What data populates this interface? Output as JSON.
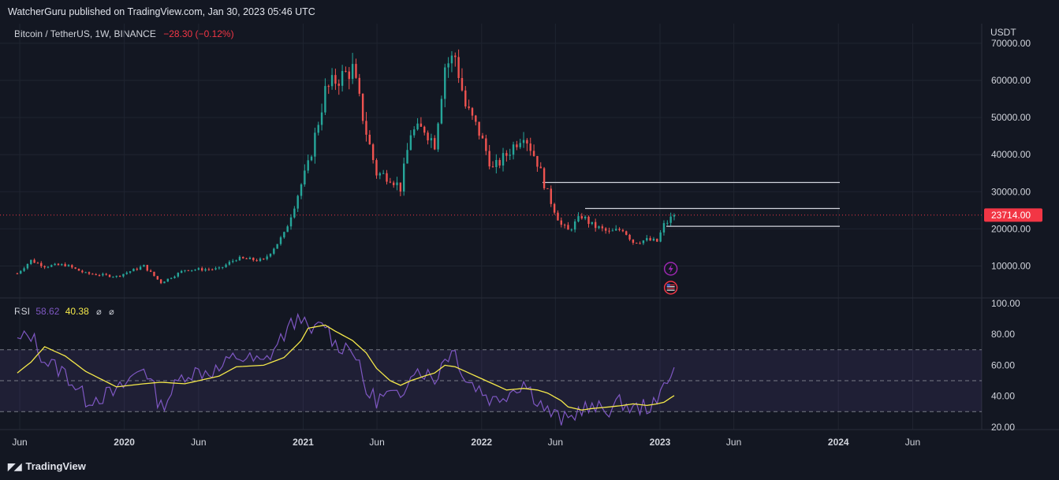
{
  "header": {
    "published": "WatcherGuru published on TradingView.com, Jan 30, 2023 05:46 UTC"
  },
  "legend": {
    "symbol": "Bitcoin / TetherUS, 1W, BINANCE",
    "change": "−28.30 (−0.12%)"
  },
  "rsi_legend": {
    "label": "RSI",
    "value": "58.62",
    "ma_value": "40.38",
    "icon1": "⌀",
    "icon2": "⌀"
  },
  "footer": {
    "brand": "TradingView",
    "logo_icon": "tradingview-logo-icon"
  },
  "colors": {
    "background": "#131722",
    "up": "#26a69a",
    "down": "#ef5350",
    "rsi": "#7e57c2",
    "rsi_ma": "#f5e94a",
    "price_tag": "#f23645"
  },
  "chart_data": [
    {
      "type": "candlestick",
      "title": "Bitcoin / TetherUS, 1W, BINANCE",
      "ylabel": "USDT",
      "yticks": [
        "70000.00",
        "60000.00",
        "50000.00",
        "40000.00",
        "30000.00",
        "20000.00",
        "10000.00"
      ],
      "ytick_values": [
        70000,
        60000,
        50000,
        40000,
        30000,
        20000,
        10000
      ],
      "xticks": [
        "Jun",
        "2020",
        "Jun",
        "2021",
        "Jun",
        "2022",
        "Jun",
        "2023",
        "Jun",
        "2024",
        "Jun"
      ],
      "xtick_dates": [
        "2019-06",
        "2020-01",
        "2020-06",
        "2021-01",
        "2021-06",
        "2022-01",
        "2022-06",
        "2023-01",
        "2023-06",
        "2024-01",
        "2024-06"
      ],
      "last_price": 23714,
      "last_price_label": "23714.00",
      "horizontal_lines": [
        32500,
        25500,
        20700
      ],
      "event_icons": [
        "lightning-icon",
        "us-flag-icon"
      ],
      "close_path": [
        [
          "2019-05-27",
          8000
        ],
        [
          "2019-06-24",
          11500
        ],
        [
          "2019-07-22",
          10000
        ],
        [
          "2019-09-02",
          10300
        ],
        [
          "2019-10-14",
          8000
        ],
        [
          "2019-12-16",
          7200
        ],
        [
          "2020-02-10",
          10000
        ],
        [
          "2020-03-16",
          5500
        ],
        [
          "2020-05-04",
          9000
        ],
        [
          "2020-07-13",
          9200
        ],
        [
          "2020-08-17",
          12000
        ],
        [
          "2020-10-12",
          11500
        ],
        [
          "2020-11-23",
          18500
        ],
        [
          "2020-12-28",
          32000
        ],
        [
          "2021-01-11",
          37000
        ],
        [
          "2021-02-15",
          57000
        ],
        [
          "2021-03-08",
          60000
        ],
        [
          "2021-04-12",
          63000
        ],
        [
          "2021-05-10",
          46000
        ],
        [
          "2021-05-31",
          35000
        ],
        [
          "2021-06-28",
          34000
        ],
        [
          "2021-07-19",
          31000
        ],
        [
          "2021-08-09",
          46000
        ],
        [
          "2021-09-06",
          47000
        ],
        [
          "2021-09-27",
          43000
        ],
        [
          "2021-10-18",
          64000
        ],
        [
          "2021-11-08",
          66500
        ],
        [
          "2021-11-29",
          53000
        ],
        [
          "2021-12-27",
          46000
        ],
        [
          "2022-01-24",
          36000
        ],
        [
          "2022-02-21",
          40000
        ],
        [
          "2022-03-28",
          46000
        ],
        [
          "2022-04-25",
          38000
        ],
        [
          "2022-05-16",
          29500
        ],
        [
          "2022-06-13",
          21000
        ],
        [
          "2022-06-27",
          19500
        ],
        [
          "2022-07-25",
          23500
        ],
        [
          "2022-08-15",
          21000
        ],
        [
          "2022-09-19",
          19000
        ],
        [
          "2022-10-17",
          20000
        ],
        [
          "2022-11-07",
          16500
        ],
        [
          "2022-12-05",
          17000
        ],
        [
          "2022-12-26",
          16600
        ],
        [
          "2023-01-09",
          21000
        ],
        [
          "2023-01-30",
          23714
        ]
      ]
    },
    {
      "type": "line",
      "title": "RSI",
      "yticks": [
        "100.00",
        "80.00",
        "60.00",
        "40.00",
        "20.00"
      ],
      "ytick_values": [
        100,
        80,
        60,
        40,
        20
      ],
      "bands": [
        70,
        50,
        30
      ],
      "series": [
        {
          "name": "RSI",
          "values_by_date": [
            [
              "2019-05-27",
              75
            ],
            [
              "2019-06-24",
              80
            ],
            [
              "2019-07-22",
              63
            ],
            [
              "2019-09-02",
              55
            ],
            [
              "2019-10-14",
              38
            ],
            [
              "2019-12-16",
              42
            ],
            [
              "2020-02-10",
              60
            ],
            [
              "2020-03-16",
              33
            ],
            [
              "2020-05-04",
              55
            ],
            [
              "2020-07-13",
              57
            ],
            [
              "2020-08-17",
              66
            ],
            [
              "2020-10-12",
              61
            ],
            [
              "2020-11-23",
              80
            ],
            [
              "2020-12-28",
              93
            ],
            [
              "2021-01-11",
              80
            ],
            [
              "2021-02-15",
              87
            ],
            [
              "2021-03-08",
              73
            ],
            [
              "2021-04-12",
              72
            ],
            [
              "2021-05-10",
              43
            ],
            [
              "2021-05-31",
              38
            ],
            [
              "2021-06-28",
              41
            ],
            [
              "2021-07-19",
              37
            ],
            [
              "2021-08-09",
              58
            ],
            [
              "2021-09-06",
              56
            ],
            [
              "2021-09-27",
              50
            ],
            [
              "2021-10-18",
              66
            ],
            [
              "2021-11-08",
              69
            ],
            [
              "2021-11-29",
              51
            ],
            [
              "2021-12-27",
              45
            ],
            [
              "2022-01-24",
              37
            ],
            [
              "2022-02-21",
              42
            ],
            [
              "2022-03-28",
              49
            ],
            [
              "2022-04-25",
              38
            ],
            [
              "2022-05-16",
              30
            ],
            [
              "2022-06-13",
              25
            ],
            [
              "2022-06-27",
              24
            ],
            [
              "2022-07-25",
              33
            ],
            [
              "2022-08-15",
              31
            ],
            [
              "2022-09-19",
              32
            ],
            [
              "2022-10-17",
              36
            ],
            [
              "2022-11-07",
              31
            ],
            [
              "2022-12-05",
              34
            ],
            [
              "2022-12-26",
              33
            ],
            [
              "2023-01-09",
              50
            ],
            [
              "2023-01-30",
              58.62
            ]
          ]
        },
        {
          "name": "RSI-based MA",
          "values_by_date": [
            [
              "2019-05-27",
              55
            ],
            [
              "2019-06-24",
              62
            ],
            [
              "2019-07-22",
              72
            ],
            [
              "2019-09-02",
              66
            ],
            [
              "2019-10-14",
              56
            ],
            [
              "2019-12-16",
              46
            ],
            [
              "2020-02-10",
              48
            ],
            [
              "2020-03-16",
              49
            ],
            [
              "2020-05-04",
              48
            ],
            [
              "2020-07-13",
              53
            ],
            [
              "2020-08-17",
              59
            ],
            [
              "2020-10-12",
              60
            ],
            [
              "2020-11-23",
              65
            ],
            [
              "2020-12-28",
              76
            ],
            [
              "2021-01-11",
              84
            ],
            [
              "2021-02-15",
              86
            ],
            [
              "2021-03-08",
              82
            ],
            [
              "2021-04-12",
              76
            ],
            [
              "2021-05-10",
              68
            ],
            [
              "2021-05-31",
              58
            ],
            [
              "2021-06-28",
              50
            ],
            [
              "2021-07-19",
              47
            ],
            [
              "2021-08-09",
              50
            ],
            [
              "2021-09-06",
              53
            ],
            [
              "2021-09-27",
              55
            ],
            [
              "2021-10-18",
              60
            ],
            [
              "2021-11-08",
              59
            ],
            [
              "2021-11-29",
              56
            ],
            [
              "2021-12-27",
              52
            ],
            [
              "2022-01-24",
              48
            ],
            [
              "2022-02-21",
              44
            ],
            [
              "2022-03-28",
              45
            ],
            [
              "2022-04-25",
              44
            ],
            [
              "2022-05-16",
              42
            ],
            [
              "2022-06-13",
              37
            ],
            [
              "2022-06-27",
              33
            ],
            [
              "2022-07-25",
              31
            ],
            [
              "2022-08-15",
              32
            ],
            [
              "2022-09-19",
              33
            ],
            [
              "2022-10-17",
              34
            ],
            [
              "2022-11-07",
              35
            ],
            [
              "2022-12-05",
              34
            ],
            [
              "2022-12-26",
              35
            ],
            [
              "2023-01-09",
              36
            ],
            [
              "2023-01-30",
              40.38
            ]
          ]
        }
      ]
    }
  ]
}
